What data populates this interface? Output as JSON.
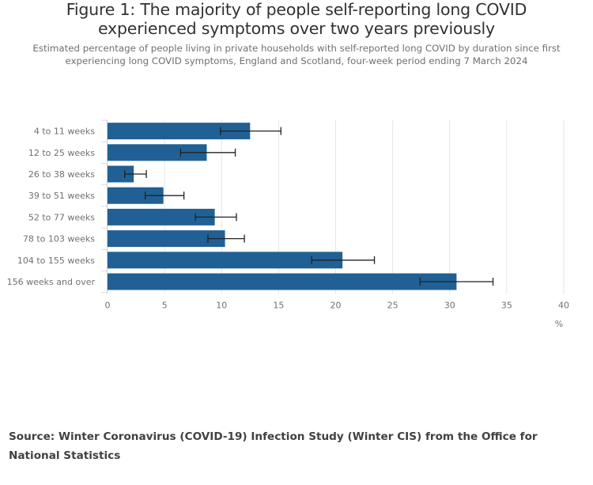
{
  "chart_data": {
    "type": "bar",
    "orientation": "horizontal",
    "title": "Figure 1: The majority of people self-reporting long COVID experienced symptoms over two years previously",
    "subtitle": "Estimated percentage of people living in private households with self-reported long COVID by duration since first experiencing long COVID symptoms, England and Scotland, four-week period ending 7 March 2024",
    "categories": [
      "4 to 11 weeks",
      "12 to 25 weeks",
      "26 to 38 weeks",
      "39 to 51 weeks",
      "52 to 77 weeks",
      "78 to 103 weeks",
      "104 to 155 weeks",
      "156 weeks and over"
    ],
    "values": [
      12.5,
      8.7,
      2.3,
      4.9,
      9.4,
      10.3,
      20.6,
      30.6
    ],
    "error_lower": [
      9.9,
      6.4,
      1.5,
      3.3,
      7.7,
      8.8,
      17.9,
      27.4
    ],
    "error_upper": [
      15.2,
      11.2,
      3.4,
      6.7,
      11.3,
      12.0,
      23.4,
      33.8
    ],
    "xlabel": "%",
    "ylabel": "",
    "xlim": [
      0,
      40
    ],
    "xticks": [
      0,
      5,
      10,
      15,
      20,
      25,
      30,
      35,
      40
    ],
    "grid": true,
    "legend": "none",
    "bar_color": "#206095",
    "error_bar_color": "#222222",
    "source": "Source: Winter Coronavirus (COVID-19) Infection Study (Winter CIS) from the Office for National Statistics"
  }
}
